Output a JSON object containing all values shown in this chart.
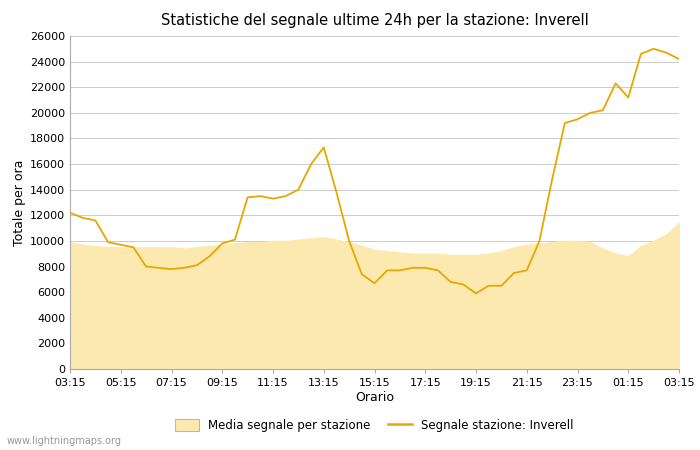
{
  "title": "Statistiche del segnale ultime 24h per la stazione: Inverell",
  "xlabel": "Orario",
  "ylabel": "Totale per ora",
  "background_color": "#ffffff",
  "plot_bg_color": "#ffffff",
  "grid_color": "#cccccc",
  "fill_color": "#fce9b0",
  "fill_alpha": 1.0,
  "line_color": "#e6a800",
  "line_width": 1.3,
  "ylim": [
    0,
    26000
  ],
  "yticks": [
    0,
    2000,
    4000,
    6000,
    8000,
    10000,
    12000,
    14000,
    16000,
    18000,
    20000,
    22000,
    24000,
    26000
  ],
  "x_labels": [
    "03:15",
    "05:15",
    "07:15",
    "09:15",
    "11:15",
    "13:15",
    "15:15",
    "17:15",
    "19:15",
    "21:15",
    "23:15",
    "01:15",
    "03:15"
  ],
  "watermark": "www.lightningmaps.org",
  "legend_fill_label": "Media segnale per stazione",
  "legend_line_label": "Segnale stazione: Inverell",
  "line_values": [
    12200,
    11800,
    11600,
    9900,
    9700,
    9500,
    8000,
    7900,
    7800,
    7900,
    8100,
    8800,
    9800,
    10100,
    13400,
    13500,
    13300,
    13500,
    14000,
    16000,
    17300,
    13800,
    10000,
    7400,
    6700,
    7700,
    7700,
    7900,
    7900,
    7700,
    6800,
    6600,
    5900,
    6500,
    6500,
    7500,
    7700,
    10000,
    14800,
    19200,
    19500,
    20000,
    20200,
    22300,
    21200,
    24600,
    25000,
    24700,
    24200
  ],
  "fill_values": [
    9900,
    9700,
    9600,
    9500,
    9500,
    9500,
    9500,
    9500,
    9500,
    9400,
    9500,
    9600,
    9700,
    9800,
    9900,
    9900,
    10000,
    10000,
    10100,
    10200,
    10300,
    10100,
    9900,
    9600,
    9300,
    9200,
    9100,
    9000,
    9000,
    9000,
    8900,
    8900,
    8900,
    9000,
    9200,
    9500,
    9700,
    9800,
    9900,
    10000,
    10000,
    9900,
    9400,
    9000,
    8800,
    9600,
    10000,
    10500,
    11400
  ]
}
